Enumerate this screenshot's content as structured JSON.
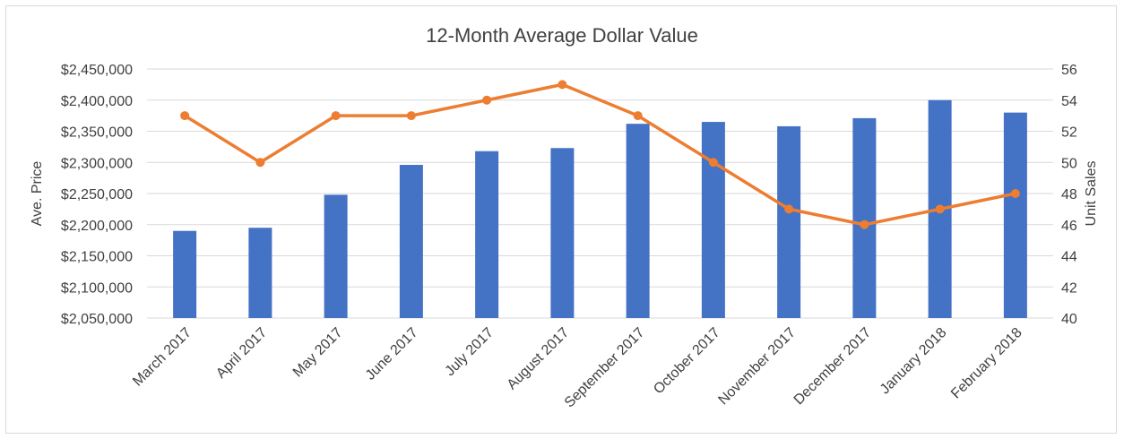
{
  "chart_data": {
    "type": "bar",
    "title": "12-Month Average Dollar Value",
    "categories": [
      "March 2017",
      "April 2017",
      "May 2017",
      "June 2017",
      "July 2017",
      "August 2017",
      "September 2017",
      "October 2017",
      "November 2017",
      "December 2017",
      "January 2018",
      "February 2018"
    ],
    "series": [
      {
        "type": "bar",
        "axis": "left",
        "color": "#4472C4",
        "values": [
          2190000,
          2195000,
          2248000,
          2296000,
          2318000,
          2323000,
          2362000,
          2365000,
          2358000,
          2371000,
          2400000,
          2380000
        ]
      },
      {
        "type": "line",
        "axis": "right",
        "color": "#ED7D31",
        "values": [
          53,
          50,
          53,
          53,
          54,
          55,
          53,
          50,
          47,
          46,
          47,
          48
        ]
      }
    ],
    "y_left": {
      "label": "Ave. Price",
      "min": 2050000,
      "max": 2450000,
      "ticks": [
        "$2,050,000",
        "$2,100,000",
        "$2,150,000",
        "$2,200,000",
        "$2,250,000",
        "$2,300,000",
        "$2,350,000",
        "$2,400,000",
        "$2,450,000"
      ]
    },
    "y_right": {
      "label": "Unit Sales",
      "min": 40,
      "max": 56,
      "ticks": [
        "40",
        "42",
        "44",
        "46",
        "48",
        "50",
        "52",
        "54",
        "56"
      ]
    },
    "grid": true,
    "legend": "none"
  }
}
